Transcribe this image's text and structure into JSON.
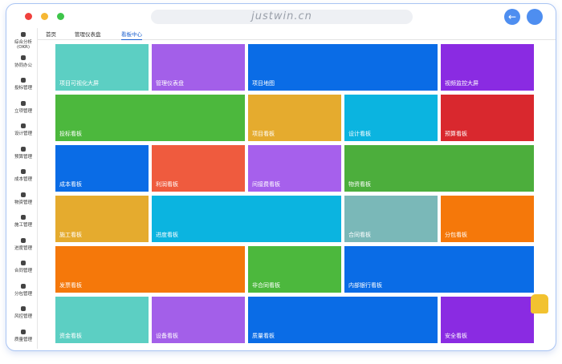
{
  "browser": {
    "url": "justwin.cn"
  },
  "tabs": [
    "首页",
    "管理仪表盘",
    "看板中心"
  ],
  "sidebar": [
    "综合分析(OKR)",
    "协同办公",
    "投标管理",
    "立项管理",
    "设计管理",
    "预算管理",
    "成本管理",
    "物资管理",
    "施工管理",
    "进度管理",
    "合同管理",
    "分包管理",
    "风控管理",
    "质量管理"
  ],
  "tiles": [
    [
      "项目可视化大屏",
      "管理仪表盘",
      "项目地图",
      "视频监控大屏"
    ],
    [
      "投标看板",
      "项目看板",
      "设计看板",
      "预算看板"
    ],
    [
      "成本看板",
      "利润看板",
      "间接费看板",
      "物资看板"
    ],
    [
      "施工看板",
      "进度看板",
      "合同看板",
      "分包看板"
    ],
    [
      "发票看板",
      "非合同看板",
      "内部银行看板"
    ],
    [
      "资金看板",
      "设备看板",
      "质量看板",
      "安全看板"
    ]
  ]
}
